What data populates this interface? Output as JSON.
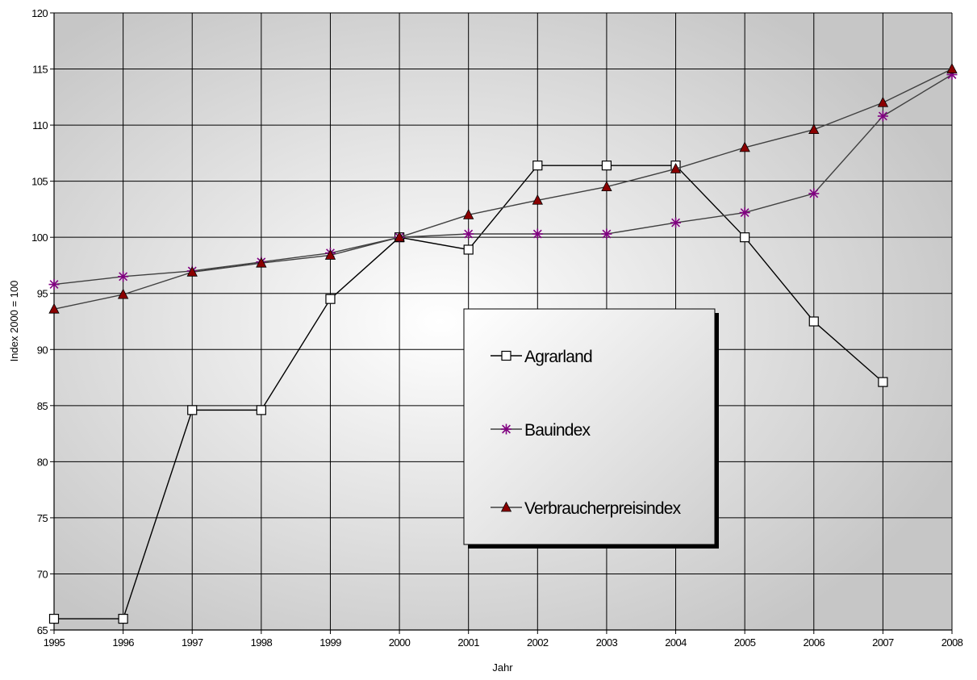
{
  "chart_data": {
    "type": "line",
    "xlabel": "Jahr",
    "ylabel": "Index 2000 = 100",
    "x": [
      "1995",
      "1996",
      "1997",
      "1998",
      "1999",
      "2000",
      "2001",
      "2002",
      "2003",
      "2004",
      "2005",
      "2006",
      "2007",
      "2008"
    ],
    "ylim": [
      65,
      120
    ],
    "yticks": [
      "65",
      "70",
      "75",
      "80",
      "85",
      "90",
      "95",
      "100",
      "105",
      "110",
      "115",
      "120"
    ],
    "grid": true,
    "legend_position": "center",
    "series": [
      {
        "name": "Agrarland",
        "marker": "square-open",
        "color": "#000000",
        "values": [
          66,
          66,
          84.6,
          84.6,
          94.5,
          100,
          98.9,
          106.4,
          106.4,
          106.4,
          100,
          92.5,
          87.1,
          null
        ]
      },
      {
        "name": "Bauindex",
        "marker": "asterisk",
        "color": "#800080",
        "values": [
          95.8,
          96.5,
          97,
          97.8,
          98.6,
          100,
          100.3,
          100.3,
          100.3,
          101.3,
          102.2,
          103.9,
          110.8,
          114.5
        ]
      },
      {
        "name": "Verbraucherpreisindex",
        "marker": "triangle",
        "color": "#8B0000",
        "values": [
          93.6,
          94.9,
          96.9,
          97.7,
          98.4,
          100,
          102,
          103.3,
          104.5,
          106.1,
          108,
          109.6,
          112,
          115
        ]
      }
    ]
  }
}
